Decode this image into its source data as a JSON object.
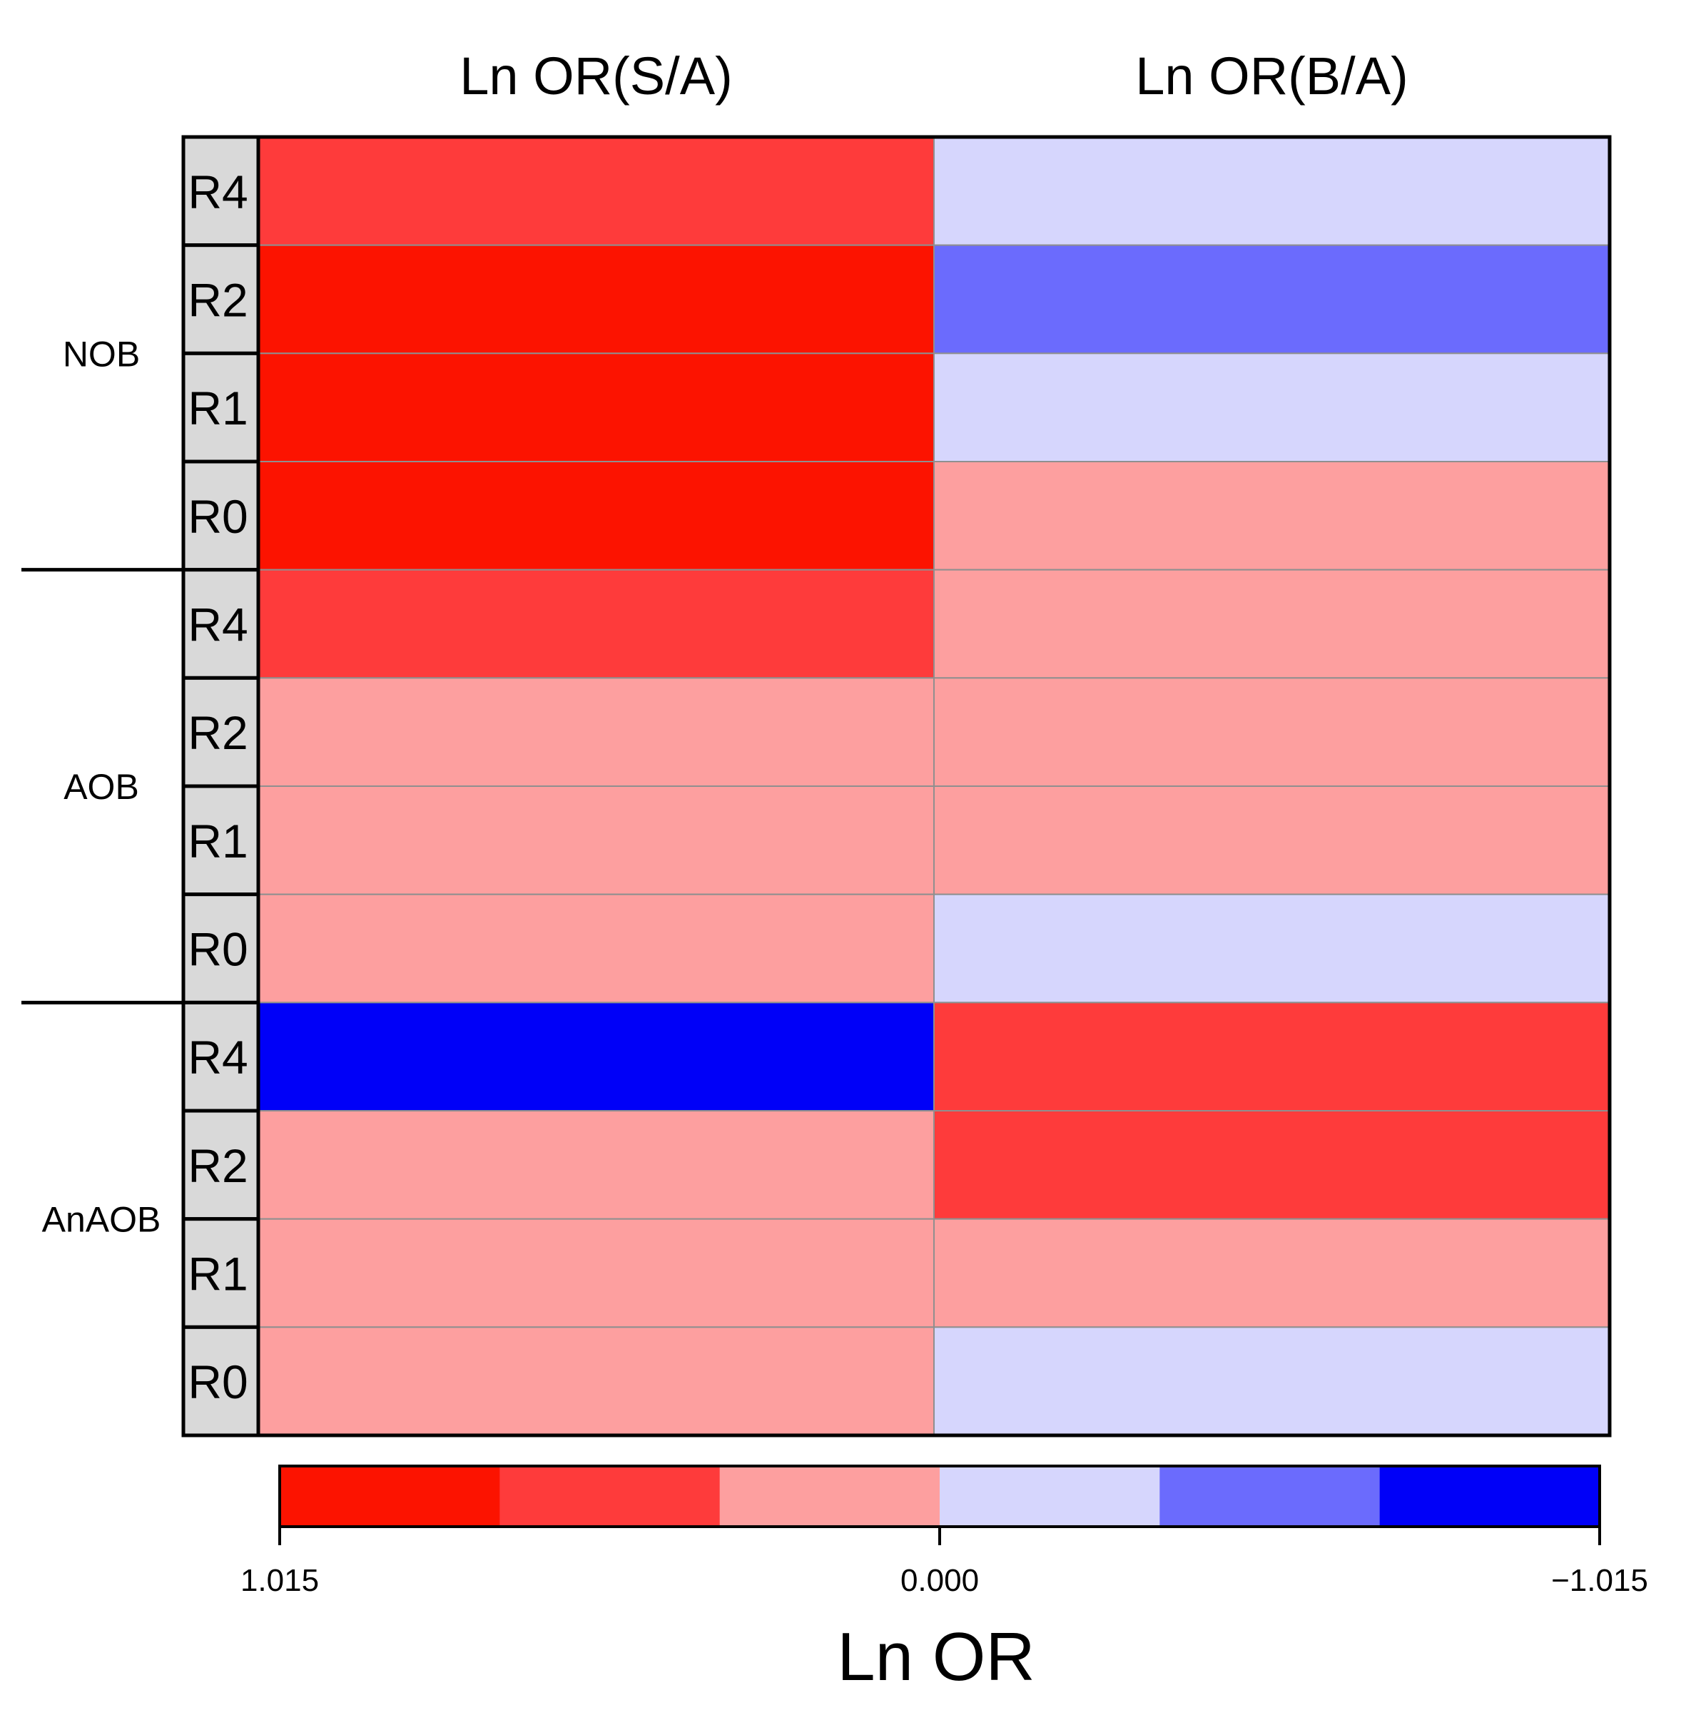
{
  "chart_data": {
    "type": "heatmap",
    "columns": [
      "Ln OR(S/A)",
      "Ln OR(B/A)"
    ],
    "groups": [
      {
        "name": "NOB",
        "rows": [
          "R4",
          "R2",
          "R1",
          "R0"
        ]
      },
      {
        "name": "AOB",
        "rows": [
          "R4",
          "R2",
          "R1",
          "R0"
        ]
      },
      {
        "name": "AnAOB",
        "rows": [
          "R4",
          "R2",
          "R1",
          "R0"
        ]
      }
    ],
    "values": [
      [
        0.59,
        -0.17
      ],
      [
        0.93,
        -0.59
      ],
      [
        0.93,
        -0.17
      ],
      [
        0.93,
        0.17
      ],
      [
        0.59,
        0.17
      ],
      [
        0.17,
        0.17
      ],
      [
        0.17,
        0.17
      ],
      [
        0.17,
        -0.17
      ],
      [
        -0.93,
        0.59
      ],
      [
        0.17,
        0.59
      ],
      [
        0.17,
        0.17
      ],
      [
        0.17,
        -0.17
      ]
    ],
    "colorbar": {
      "title": "Ln OR",
      "range": [
        1.015,
        -1.015
      ],
      "tick_labels": [
        "1.015",
        "0.000",
        "−1.015"
      ],
      "colors": [
        "#fc1300",
        "#fe3b3b",
        "#fd9f9f",
        "#d6d6fd",
        "#6b6bfd",
        "#0000f8"
      ]
    }
  }
}
